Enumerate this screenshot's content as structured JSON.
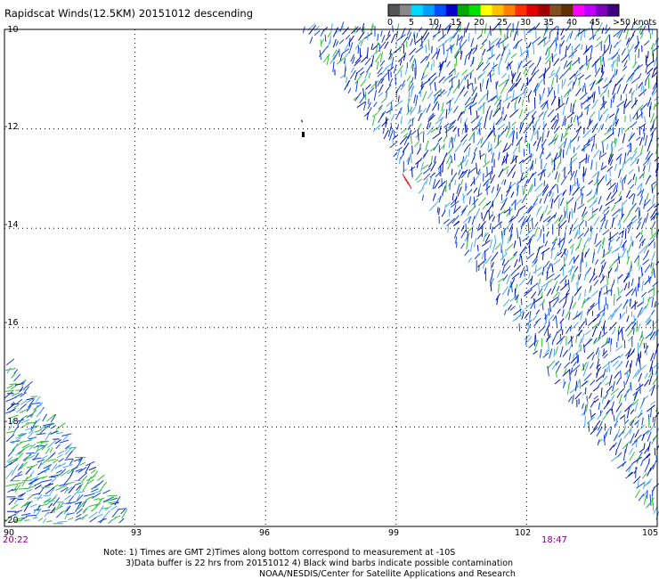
{
  "title": "Rapidscat Winds(12.5KM) 20151012 descending",
  "color_scale": {
    "labels": [
      "0",
      "5",
      "10",
      "15",
      "20",
      "25",
      "30",
      "35",
      "40",
      "45",
      ">50 knots"
    ],
    "colors": [
      "#555555",
      "#888888",
      "#00d8ff",
      "#00a0ff",
      "#0050ff",
      "#0000c8",
      "#00a800",
      "#00e000",
      "#ffff00",
      "#ffc000",
      "#ff8000",
      "#ff3000",
      "#e00000",
      "#a00000",
      "#805020",
      "#603000",
      "#ff00ff",
      "#c000ff",
      "#8000c0",
      "#400080"
    ]
  },
  "map": {
    "lat_labels": [
      "-10",
      "-12",
      "-14",
      "-16",
      "-18",
      "-20"
    ],
    "lon_labels": [
      "90",
      "93",
      "96",
      "99",
      "102",
      "105"
    ],
    "lat_values": [
      -10,
      -12,
      -14,
      -16,
      -18,
      -20
    ],
    "lon_values": [
      90,
      93,
      96,
      99,
      102,
      105
    ],
    "lon_range": [
      90,
      105
    ],
    "lat_range": [
      -10,
      -20
    ],
    "grid": "dotted"
  },
  "swaths": {
    "right_time": "18:47",
    "left_time": "20:22",
    "vector_colors": {
      "light_blue": "#4aa8f0",
      "blue": "#1040e0",
      "dark_blue": "#0010b0",
      "green": "#30c030",
      "red": "#e02020"
    }
  },
  "notes": {
    "line1": "Note: 1) Times are GMT 2)Times along bottom correspond to measurement at -10S",
    "line2": "3)Data buffer is 22 hrs from 20151012 4) Black wind barbs indicate possible contamination",
    "line3": "NOAA/NESDIS/Center for Satellite Applications and Research"
  }
}
